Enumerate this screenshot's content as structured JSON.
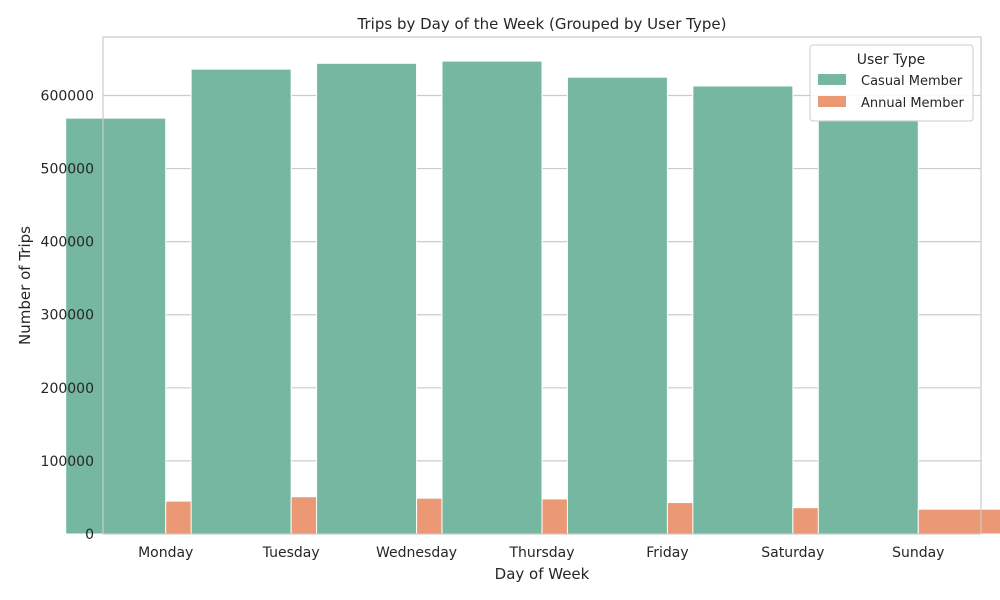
{
  "chart_data": {
    "type": "bar",
    "title": "Trips by Day of the Week (Grouped by User Type)",
    "xlabel": "Day of Week",
    "ylabel": "Number of Trips",
    "categories": [
      "Monday",
      "Tuesday",
      "Wednesday",
      "Thursday",
      "Friday",
      "Saturday",
      "Sunday"
    ],
    "series": [
      {
        "name": "Casual Member",
        "color": "#75b7a0",
        "values": [
          569000,
          636000,
          644000,
          647000,
          625000,
          613000,
          567000
        ]
      },
      {
        "name": "Annual Member",
        "color": "#eb9875",
        "values": [
          45000,
          51000,
          49000,
          48000,
          43000,
          36000,
          34000
        ]
      }
    ],
    "ylim": [
      0,
      680000
    ],
    "yticks": [
      0,
      100000,
      200000,
      300000,
      400000,
      500000,
      600000
    ],
    "ytick_labels": [
      "0",
      "100000",
      "200000",
      "300000",
      "400000",
      "500000",
      "600000"
    ],
    "legend": {
      "title": "User Type",
      "placement": "top-right"
    },
    "grid": "horizontal"
  }
}
